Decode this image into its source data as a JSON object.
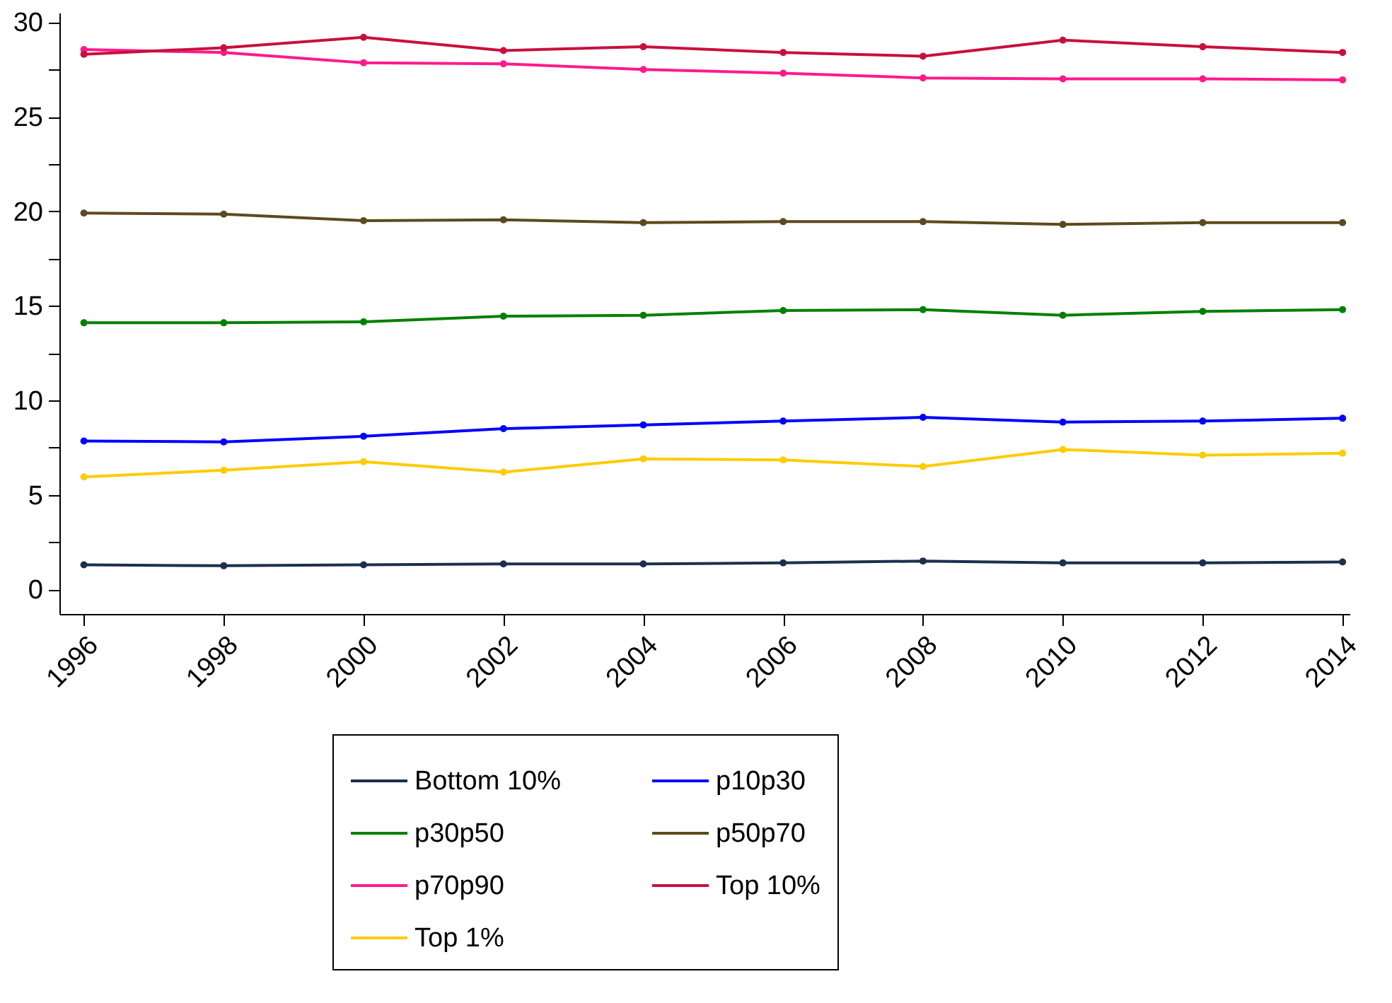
{
  "chart_data": {
    "type": "line",
    "x": [
      1996,
      1998,
      2000,
      2002,
      2004,
      2006,
      2008,
      2010,
      2012,
      2014
    ],
    "xlim": [
      1995.65,
      2014.1
    ],
    "xticks": [
      1996,
      1998,
      2000,
      2002,
      2004,
      2006,
      2008,
      2010,
      2012,
      2014
    ],
    "ylim": [
      -1.3,
      30.5
    ],
    "yticks": [
      0,
      {
        "value": 2.5,
        "label": null
      },
      5,
      {
        "value": 7.5,
        "label": null
      },
      10,
      {
        "value": 12.5,
        "label": null
      },
      15,
      {
        "value": 17.5,
        "label": null
      },
      20,
      {
        "value": 22.5,
        "label": null
      },
      25,
      {
        "value": 27.5,
        "label": null
      },
      30
    ],
    "grid": false,
    "legend": "bottom",
    "marker": "circle",
    "line_style": "solid",
    "series": [
      {
        "name": "Bottom 10%",
        "color": "#1c2f4e",
        "values": [
          1.3,
          1.25,
          1.3,
          1.35,
          1.35,
          1.4,
          1.5,
          1.4,
          1.4,
          1.45
        ]
      },
      {
        "name": "p10p30",
        "color": "#0000ff",
        "values": [
          7.85,
          7.8,
          8.1,
          8.5,
          8.7,
          8.9,
          9.1,
          8.85,
          8.9,
          9.05
        ]
      },
      {
        "name": "p30p50",
        "color": "#008000",
        "values": [
          14.1,
          14.1,
          14.15,
          14.45,
          14.5,
          14.75,
          14.8,
          14.5,
          14.7,
          14.8
        ]
      },
      {
        "name": "p50p70",
        "color": "#5c4a1e",
        "values": [
          19.9,
          19.85,
          19.5,
          19.55,
          19.4,
          19.45,
          19.45,
          19.3,
          19.4,
          19.4
        ]
      },
      {
        "name": "p70p90",
        "color": "#ff1a8c",
        "values": [
          28.55,
          28.4,
          27.85,
          27.8,
          27.5,
          27.3,
          27.05,
          27.0,
          27.0,
          26.95
        ]
      },
      {
        "name": "Top 10%",
        "color": "#c8103e",
        "values": [
          28.3,
          28.65,
          29.2,
          28.5,
          28.7,
          28.4,
          28.2,
          29.05,
          28.7,
          28.4
        ]
      },
      {
        "name": "Top 1%",
        "color": "#ffcc00",
        "values": [
          5.95,
          6.3,
          6.75,
          6.2,
          6.9,
          6.85,
          6.5,
          7.4,
          7.1,
          7.2
        ]
      }
    ]
  }
}
